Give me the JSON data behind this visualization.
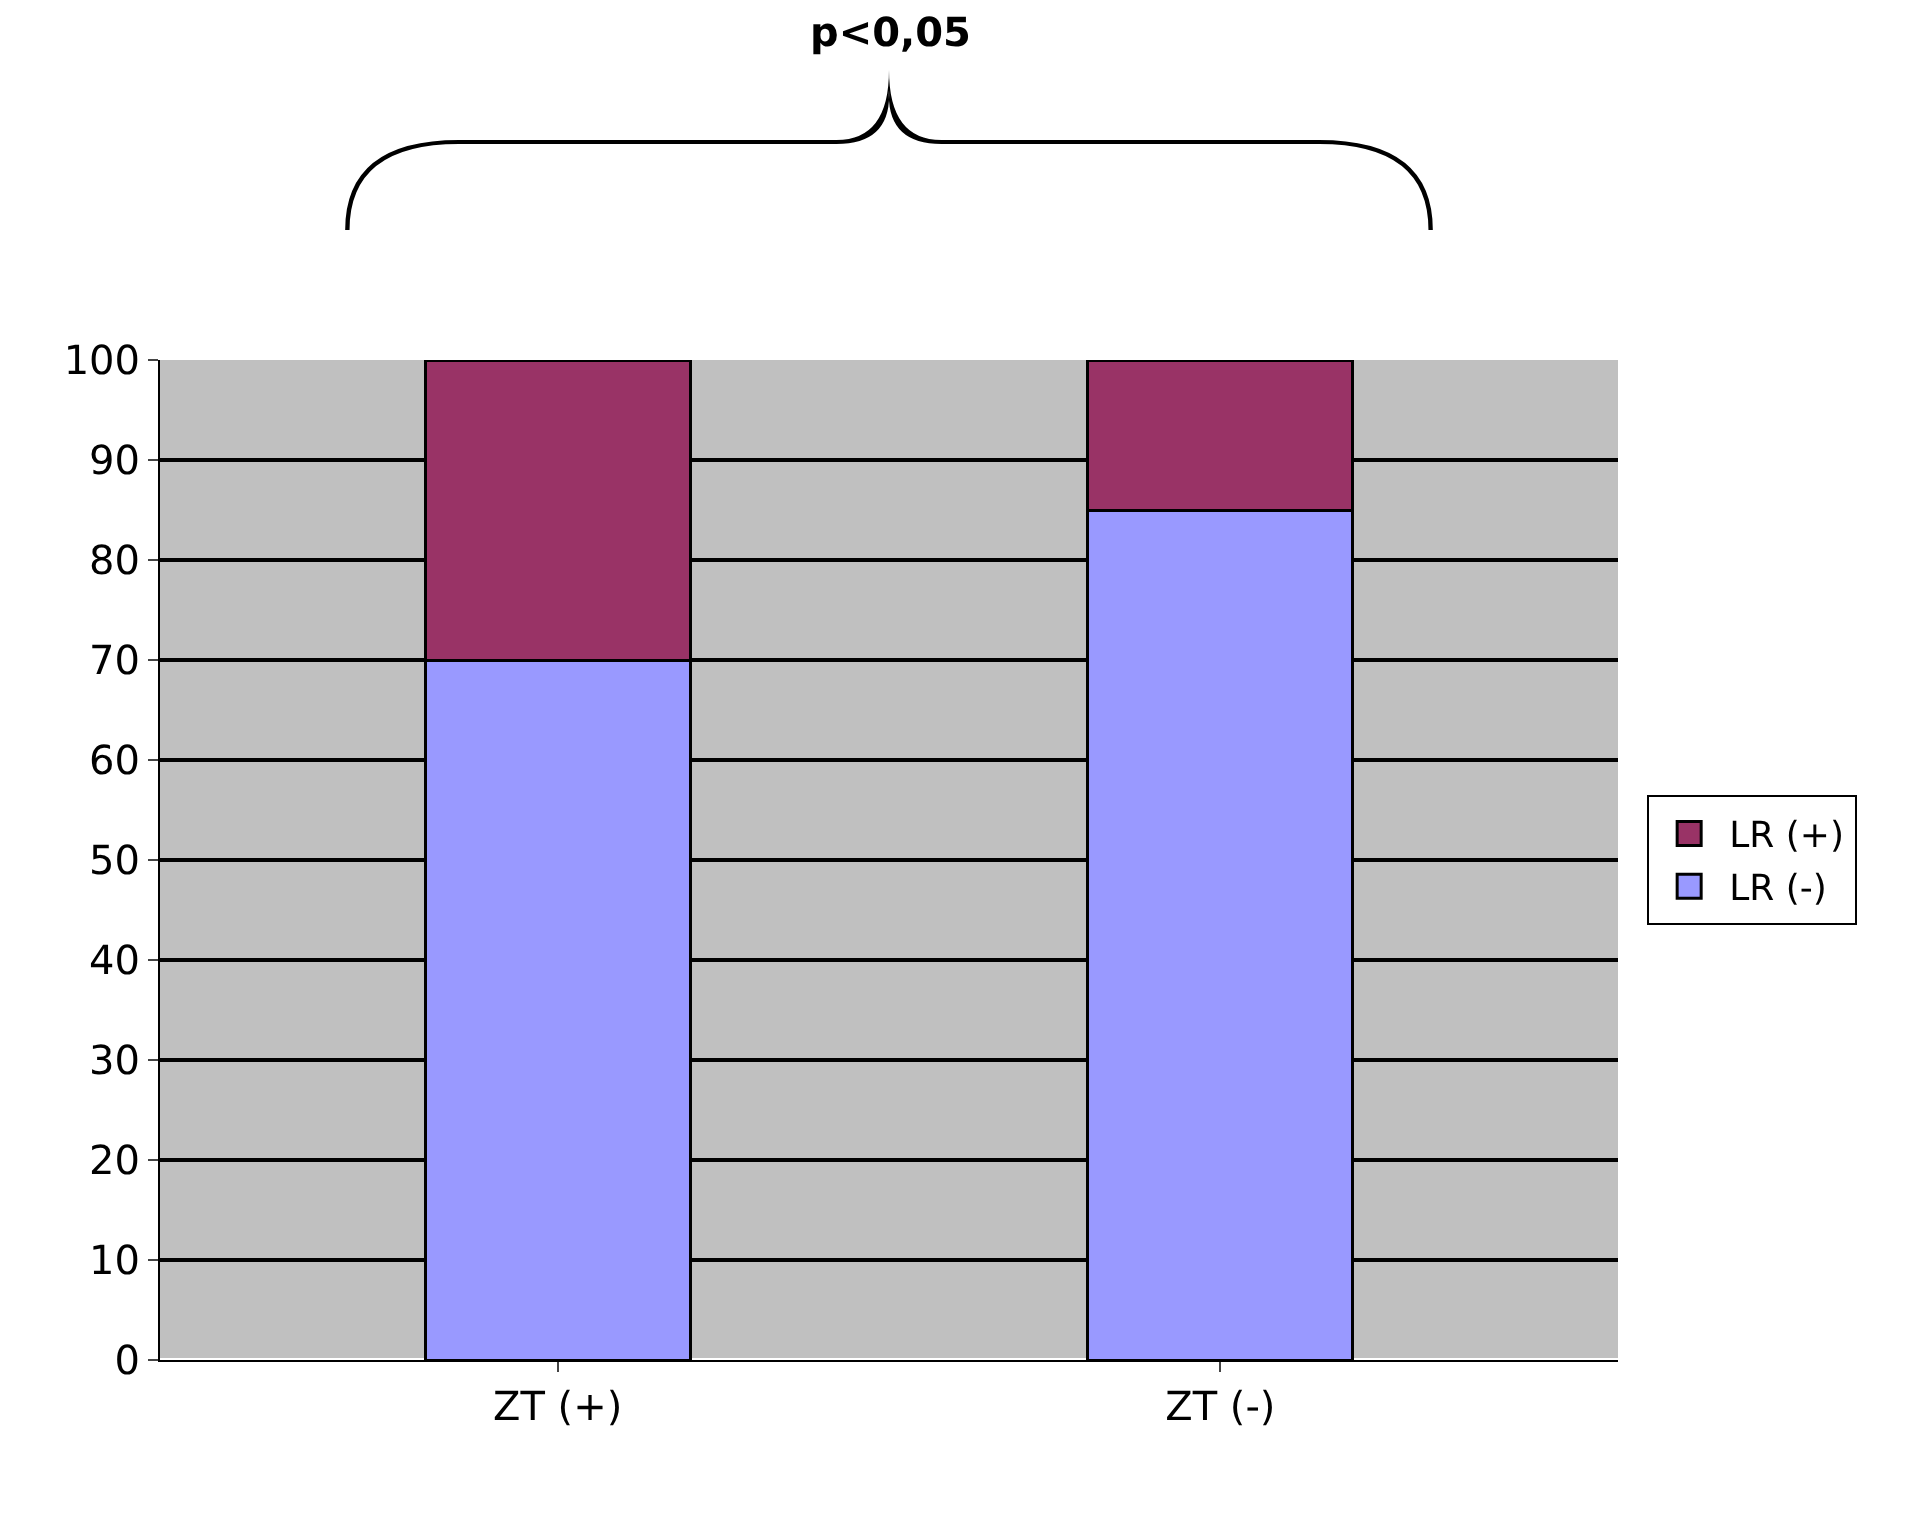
{
  "chart_data": {
    "type": "bar",
    "stacked": true,
    "categories": [
      "ZT (+)",
      "ZT (-)"
    ],
    "series": [
      {
        "name": "LR (-)",
        "color": "#9999ff",
        "values": [
          70,
          85
        ]
      },
      {
        "name": "LR (+)",
        "color": "#993366",
        "values": [
          30,
          15
        ]
      }
    ],
    "ylim": [
      0,
      100
    ],
    "yticks": [
      0,
      10,
      20,
      30,
      40,
      50,
      60,
      70,
      80,
      90,
      100
    ],
    "grid": "y",
    "legend": "right",
    "annotations": [
      "p<0,05"
    ]
  }
}
